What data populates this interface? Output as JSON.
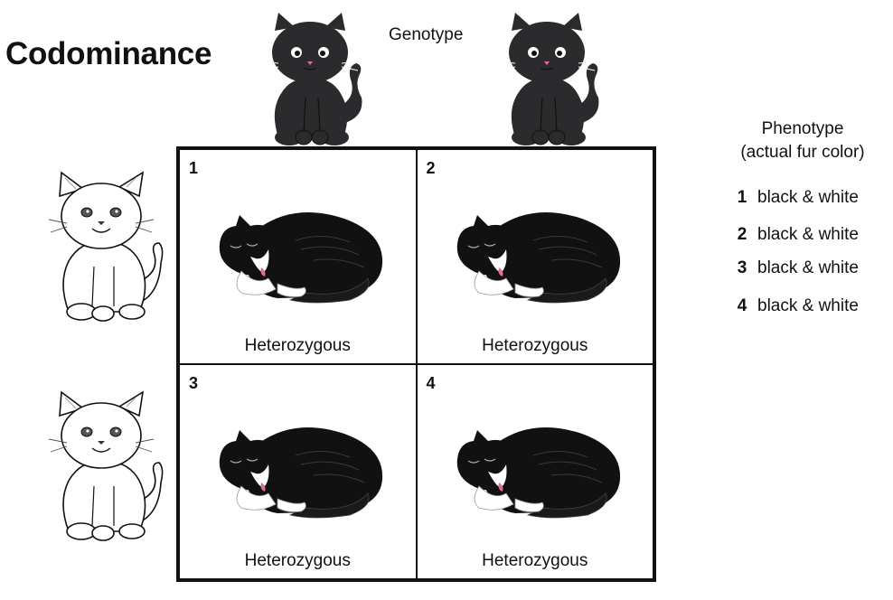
{
  "title": "Codominance",
  "genotype_label": "Genotype",
  "phenotype": {
    "title_line1": "Phenotype",
    "title_line2": "(actual fur color)",
    "items": [
      {
        "num": "1",
        "value": "black & white"
      },
      {
        "num": "2",
        "value": "black & white"
      },
      {
        "num": "3",
        "value": "black & white"
      },
      {
        "num": "4",
        "value": "black & white"
      }
    ]
  },
  "cells": [
    {
      "num": "1",
      "label": "Heterozygous"
    },
    {
      "num": "2",
      "label": "Heterozygous"
    },
    {
      "num": "3",
      "label": "Heterozygous"
    },
    {
      "num": "4",
      "label": "Heterozygous"
    }
  ],
  "colors": {
    "black_cat": "#2b2b2d",
    "white_cat": "#ffffff",
    "outline": "#111111",
    "nose": "#e06ba0"
  }
}
